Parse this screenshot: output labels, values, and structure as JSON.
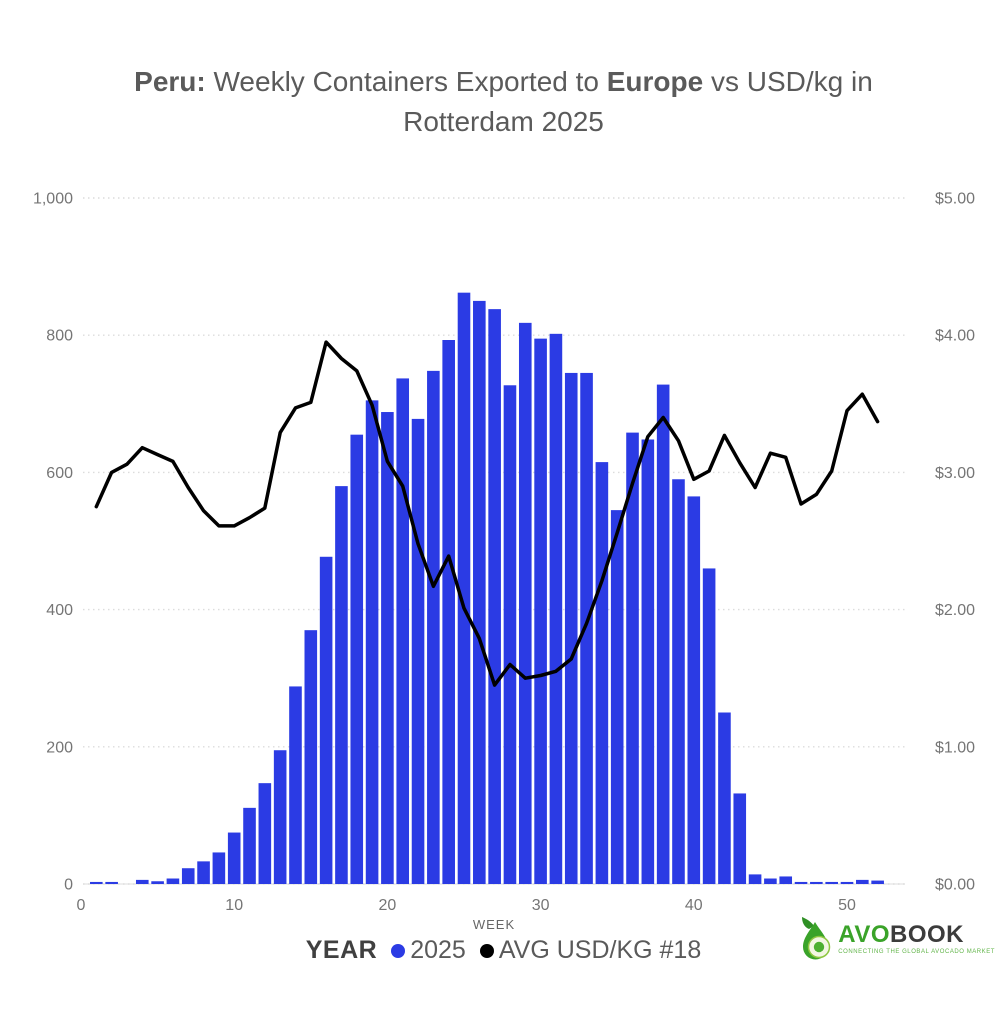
{
  "title": {
    "bold1": "Peru:",
    "text1": " Weekly Containers Exported to ",
    "bold2": "Europe",
    "text2": " vs USD/kg in Rotterdam 2025"
  },
  "x_axis": {
    "label": "WEEK",
    "ticks": [
      "0",
      "10",
      "20",
      "30",
      "40",
      "50"
    ],
    "tick_values": [
      0,
      10,
      20,
      30,
      40,
      50
    ]
  },
  "y_axis_left": {
    "ticks": [
      "0",
      "200",
      "400",
      "600",
      "800",
      "1,000"
    ],
    "tick_values": [
      0,
      200,
      400,
      600,
      800,
      1000
    ]
  },
  "y_axis_right": {
    "ticks": [
      "$0.00",
      "$1.00",
      "$2.00",
      "$3.00",
      "$4.00",
      "$5.00"
    ],
    "tick_values": [
      0,
      1,
      2,
      3,
      4,
      5
    ]
  },
  "legend": {
    "title": "YEAR",
    "items": [
      {
        "label": "2025",
        "color": "#2b3be4",
        "series": "bar"
      },
      {
        "label": "AVG USD/KG #18",
        "color": "#000000",
        "series": "line"
      }
    ]
  },
  "logo": {
    "avo": "AVO",
    "book": "BOOK",
    "tagline": "CONNECTING THE GLOBAL AVOCADO MARKET"
  },
  "colors": {
    "bar": "#2b3be4",
    "line": "#000000",
    "grid": "#dcdcdc",
    "tick_text": "#757575",
    "title_text": "#5a5a5a",
    "axis_label_text": "#666666",
    "logo_green": "#3aa329",
    "logo_dark": "#3c3c3c",
    "logo_tagline": "#62b54a"
  },
  "chart_data": {
    "type": "combo",
    "title": "Peru: Weekly Containers Exported to Europe vs USD/kg in Rotterdam 2025",
    "xlabel": "WEEK",
    "x": [
      1,
      2,
      3,
      4,
      5,
      6,
      7,
      8,
      9,
      10,
      11,
      12,
      13,
      14,
      15,
      16,
      17,
      18,
      19,
      20,
      21,
      22,
      23,
      24,
      25,
      26,
      27,
      28,
      29,
      30,
      31,
      32,
      33,
      34,
      35,
      36,
      37,
      38,
      39,
      40,
      41,
      42,
      43,
      44,
      45,
      46,
      47,
      48,
      49,
      50,
      51,
      52
    ],
    "left_axis_range": [
      0,
      1000
    ],
    "right_axis_range": [
      0,
      5
    ],
    "grid": "horizontal-dotted",
    "legend_position": "bottom",
    "series": [
      {
        "name": "2025",
        "type": "bar",
        "axis": "left",
        "values": [
          3,
          3,
          0,
          6,
          4,
          8,
          23,
          33,
          46,
          75,
          111,
          147,
          195,
          288,
          370,
          477,
          580,
          655,
          705,
          688,
          737,
          678,
          748,
          793,
          862,
          850,
          838,
          727,
          818,
          795,
          802,
          745,
          745,
          615,
          545,
          658,
          648,
          728,
          590,
          565,
          460,
          250,
          132,
          14,
          8,
          11,
          3,
          3,
          3,
          3,
          6,
          5
        ]
      },
      {
        "name": "AVG USD/KG #18",
        "type": "line",
        "axis": "right",
        "values": [
          2.75,
          3.0,
          3.06,
          3.18,
          3.13,
          3.08,
          2.89,
          2.72,
          2.61,
          2.61,
          2.67,
          2.74,
          3.29,
          3.47,
          3.51,
          3.95,
          3.83,
          3.74,
          3.49,
          3.08,
          2.9,
          2.48,
          2.17,
          2.39,
          2.01,
          1.79,
          1.45,
          1.6,
          1.5,
          1.52,
          1.55,
          1.64,
          1.9,
          2.21,
          2.56,
          2.92,
          3.26,
          3.4,
          3.23,
          2.95,
          3.01,
          3.27,
          3.07,
          2.89,
          3.14,
          3.11,
          2.77,
          2.84,
          3.01,
          3.45,
          3.57,
          3.37
        ]
      }
    ]
  }
}
